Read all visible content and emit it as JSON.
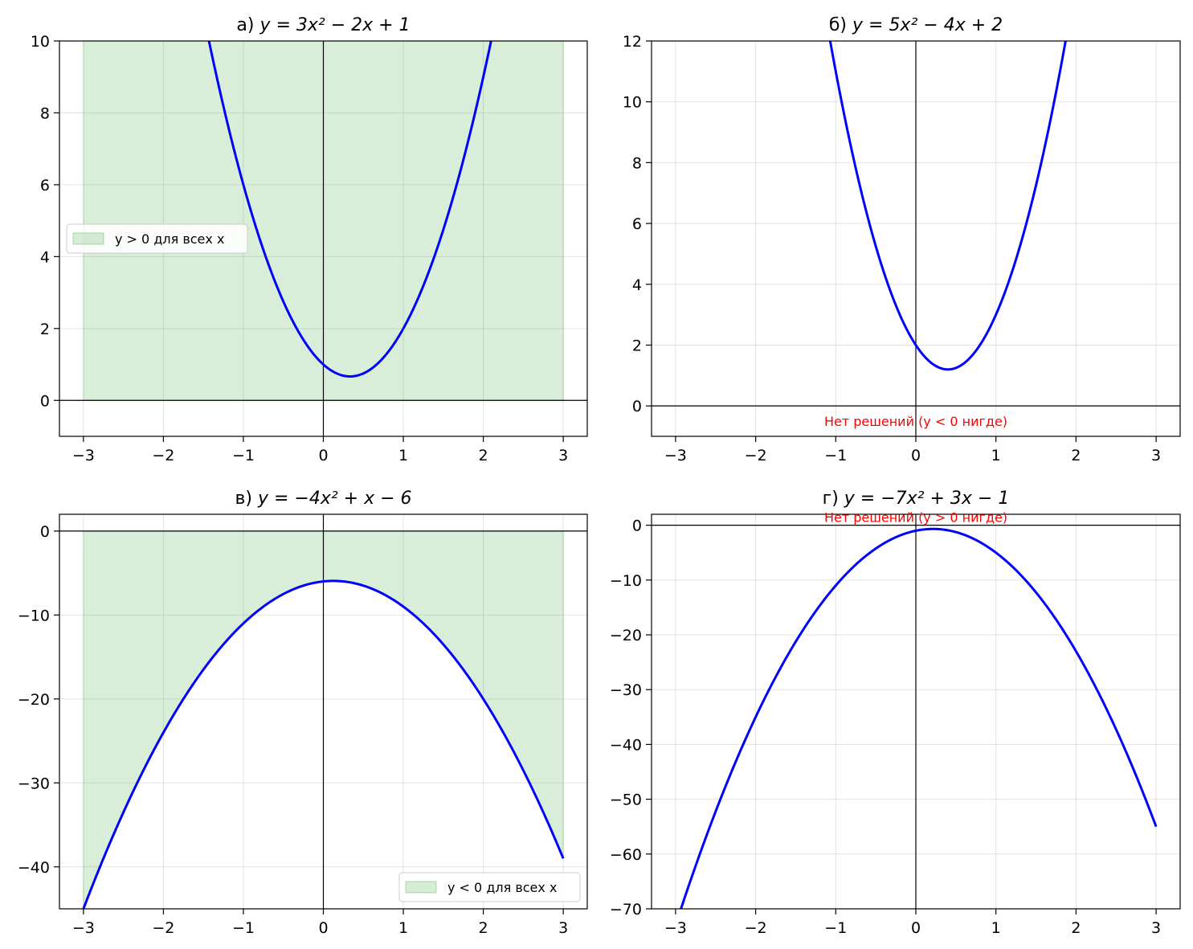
{
  "chart_data": [
    {
      "id": "a",
      "type": "line",
      "title_prefix": "а) ",
      "title_formula": "y = 3x² − 2x + 1",
      "coefficients": {
        "a": 3,
        "b": -2,
        "c": 1
      },
      "x_range": [
        -3,
        3
      ],
      "xlim": [
        -3.3,
        3.3
      ],
      "ylim": [
        -1,
        10
      ],
      "x_ticks": [
        -3,
        -2,
        -1,
        0,
        1,
        2,
        3
      ],
      "x_tick_labels": [
        "−3",
        "−2",
        "−1",
        "0",
        "1",
        "2",
        "3"
      ],
      "y_ticks": [
        0,
        2,
        4,
        6,
        8,
        10
      ],
      "y_tick_labels": [
        "0",
        "2",
        "4",
        "6",
        "8",
        "10"
      ],
      "grid": true,
      "fill": {
        "from": 0,
        "to": "top",
        "x_range": [
          -3,
          3
        ],
        "color": "#2ca02c"
      },
      "legend": {
        "label": "y > 0 для всех x",
        "placement": "center-left"
      },
      "note": null
    },
    {
      "id": "b",
      "type": "line",
      "title_prefix": "б) ",
      "title_formula": "y = 5x² − 4x + 2",
      "coefficients": {
        "a": 5,
        "b": -4,
        "c": 2
      },
      "x_range": [
        -3,
        3
      ],
      "xlim": [
        -3.3,
        3.3
      ],
      "ylim": [
        -1,
        12
      ],
      "x_ticks": [
        -3,
        -2,
        -1,
        0,
        1,
        2,
        3
      ],
      "x_tick_labels": [
        "−3",
        "−2",
        "−1",
        "0",
        "1",
        "2",
        "3"
      ],
      "y_ticks": [
        0,
        2,
        4,
        6,
        8,
        10,
        12
      ],
      "y_tick_labels": [
        "0",
        "2",
        "4",
        "6",
        "8",
        "10",
        "12"
      ],
      "grid": true,
      "fill": null,
      "legend": null,
      "note": {
        "text": "Нет решений (y < 0 нигде)",
        "x": 0,
        "y": -0.5
      }
    },
    {
      "id": "v",
      "type": "line",
      "title_prefix": "в) ",
      "title_formula": "y = −4x² + x − 6",
      "coefficients": {
        "a": -4,
        "b": 1,
        "c": -6
      },
      "x_range": [
        -3,
        3
      ],
      "xlim": [
        -3.3,
        3.3
      ],
      "ylim": [
        -45,
        2
      ],
      "x_ticks": [
        -3,
        -2,
        -1,
        0,
        1,
        2,
        3
      ],
      "x_tick_labels": [
        "−3",
        "−2",
        "−1",
        "0",
        "1",
        "2",
        "3"
      ],
      "y_ticks": [
        -40,
        -30,
        -20,
        -10,
        0
      ],
      "y_tick_labels": [
        "−40",
        "−30",
        "−20",
        "−10",
        "0"
      ],
      "grid": true,
      "fill": {
        "from": "curve",
        "to": 0,
        "x_range": [
          -3,
          3
        ],
        "color": "#2ca02c"
      },
      "legend": {
        "label": "y < 0 для всех x",
        "placement": "lower-right"
      },
      "note": null
    },
    {
      "id": "g",
      "type": "line",
      "title_prefix": "г) ",
      "title_formula": "y = −7x² + 3x − 1",
      "coefficients": {
        "a": -7,
        "b": 3,
        "c": -1
      },
      "x_range": [
        -3,
        3
      ],
      "xlim": [
        -3.3,
        3.3
      ],
      "ylim": [
        -70,
        2
      ],
      "x_ticks": [
        -3,
        -2,
        -1,
        0,
        1,
        2,
        3
      ],
      "x_tick_labels": [
        "−3",
        "−2",
        "−1",
        "0",
        "1",
        "2",
        "3"
      ],
      "y_ticks": [
        -70,
        -60,
        -50,
        -40,
        -30,
        -20,
        -10,
        0
      ],
      "y_tick_labels": [
        "−70",
        "−60",
        "−50",
        "−40",
        "−30",
        "−20",
        "−10",
        "0"
      ],
      "grid": true,
      "fill": null,
      "legend": null,
      "note": {
        "text": "Нет решений (y > 0 нигде)",
        "x": 0,
        "y": 1.5
      }
    }
  ],
  "colors": {
    "curve": "#0000ff",
    "fill": "#2ca02c",
    "note": "#ff0000",
    "grid": "#b0b0b0",
    "axis_lines": "#000000"
  }
}
